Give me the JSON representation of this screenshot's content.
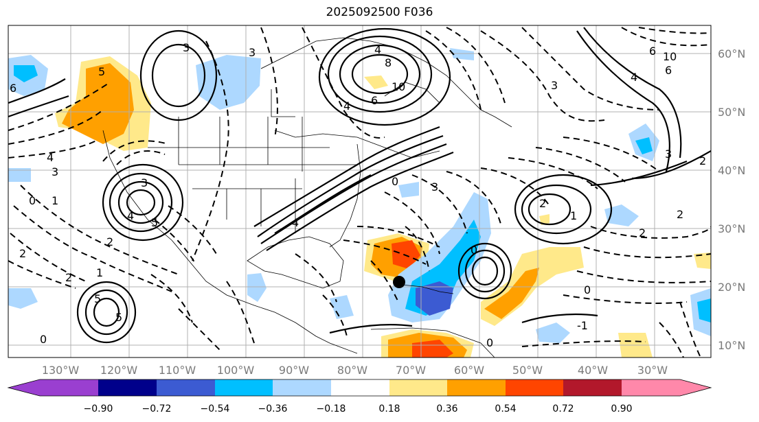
{
  "title": "2025092500 F036",
  "map": {
    "lon_ticks": [
      "130°W",
      "120°W",
      "110°W",
      "100°W",
      "90°W",
      "80°W",
      "70°W",
      "60°W",
      "50°W",
      "40°W",
      "30°W"
    ],
    "lat_ticks": [
      "60°N",
      "50°N",
      "40°N",
      "30°N",
      "20°N",
      "10°N"
    ],
    "contour_labels": [
      "3",
      "3",
      "4",
      "8",
      "6",
      "10",
      "4",
      "10",
      "6",
      "6",
      "5",
      "4",
      "3",
      "2",
      "0",
      "2",
      "2",
      "1",
      "3",
      "4",
      "5",
      "5",
      "6",
      "5",
      "4",
      "3",
      "2",
      "1",
      "0",
      "0",
      "0",
      "0",
      "0",
      "2",
      "2",
      "3",
      "2",
      "1",
      "-1",
      "4",
      "3"
    ],
    "grid": true
  },
  "colorbar": {
    "labels": [
      "−0.90",
      "−0.72",
      "−0.54",
      "−0.36",
      "−0.18",
      "0.18",
      "0.36",
      "0.54",
      "0.72",
      "0.90"
    ],
    "colors": [
      "#9a3fd0",
      "#00008b",
      "#3c5bd2",
      "#00bfff",
      "#add8ff",
      "#ffffff",
      "#ffe98a",
      "#ffa000",
      "#ff4500",
      "#b2182b",
      "#ff88aa"
    ],
    "extend_min_color": "#9a3fd0",
    "extend_max_color": "#ff88aa"
  }
}
